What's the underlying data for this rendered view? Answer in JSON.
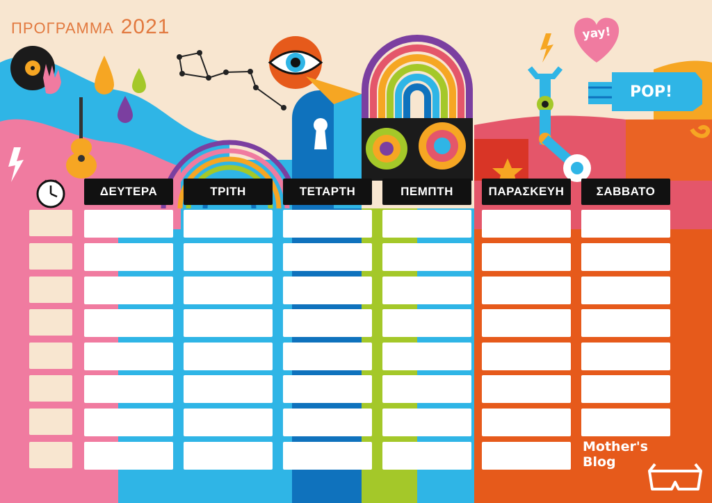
{
  "header": {
    "title": "ΠΡΟΓΡΑΜΜΑ",
    "year": "2021"
  },
  "days": [
    "ΔΕΥΤΕΡΑ",
    "ΤΡΙΤΗ",
    "ΤΕΤΑΡΤΗ",
    "ΠΕΜΠΤΗ",
    "ΠΑΡΑΣΚΕΥΗ",
    "ΣΑΒΒΑΤΟ"
  ],
  "rows": 8,
  "stickers": {
    "yay": "yay!",
    "pop": "POP!"
  },
  "brand": {
    "line1": "Mother's",
    "line2": "Blog"
  },
  "colors": {
    "pink": "#f07ba0",
    "blue": "#2fb5e6",
    "darkblue": "#0f72bd",
    "lime": "#a4c829",
    "orange": "#e65a1b",
    "cream": "#f8e6d0",
    "title": "#e2793f"
  }
}
